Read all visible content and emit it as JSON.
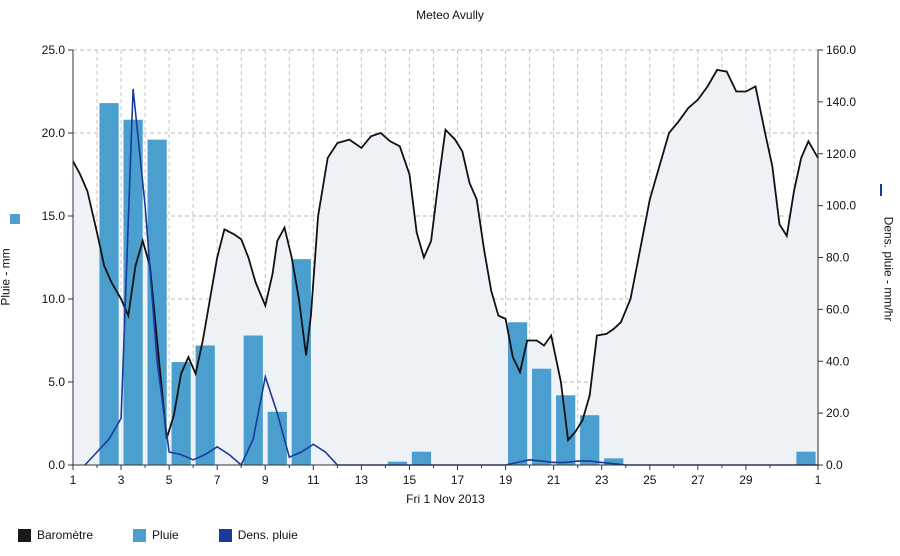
{
  "chart_data": {
    "type": "bar+line",
    "title": "Meteo  Avully",
    "xlabel": "Fri 1 Nov 2013",
    "ylabel_left": "Pluie - mm",
    "ylabel_right": "Dens. pluie - mm/hr",
    "ylim_left": [
      0,
      25
    ],
    "ylim_right": [
      0,
      160
    ],
    "grid": true,
    "x_range": [
      1,
      32
    ],
    "x_tick_labels": [
      "1",
      "3",
      "5",
      "7",
      "9",
      "11",
      "13",
      "15",
      "17",
      "19",
      "21",
      "23",
      "25",
      "27",
      "29",
      "1"
    ],
    "left_tick_labels": [
      "0.0",
      "5.0",
      "10.0",
      "15.0",
      "20.0",
      "25.0"
    ],
    "right_tick_labels": [
      "0.0",
      "20.0",
      "40.0",
      "60.0",
      "80.0",
      "100.0",
      "120.0",
      "140.0",
      "160.0"
    ],
    "legend": {
      "placement": "bottom-left",
      "entries": [
        "Baromètre",
        "Pluie",
        "Dens. pluie"
      ]
    },
    "series": [
      {
        "name": "Pluie",
        "kind": "bar",
        "axis": "left",
        "color": "#4a9fcf",
        "points": [
          {
            "x": 2.5,
            "y": 21.8
          },
          {
            "x": 3.5,
            "y": 20.8
          },
          {
            "x": 4.5,
            "y": 19.6
          },
          {
            "x": 5.5,
            "y": 6.2
          },
          {
            "x": 6.5,
            "y": 7.2
          },
          {
            "x": 8.5,
            "y": 7.8
          },
          {
            "x": 9.5,
            "y": 3.2
          },
          {
            "x": 10.5,
            "y": 12.4
          },
          {
            "x": 14.5,
            "y": 0.2
          },
          {
            "x": 15.5,
            "y": 0.8
          },
          {
            "x": 19.5,
            "y": 8.6
          },
          {
            "x": 20.5,
            "y": 5.8
          },
          {
            "x": 21.5,
            "y": 4.2
          },
          {
            "x": 22.5,
            "y": 3.0
          },
          {
            "x": 23.5,
            "y": 0.4
          },
          {
            "x": 31.5,
            "y": 0.8
          }
        ]
      },
      {
        "name": "Dens. pluie",
        "kind": "line",
        "axis": "right",
        "color": "#1a3a9a",
        "points": [
          [
            1.5,
            0
          ],
          [
            2,
            5
          ],
          [
            2.5,
            10
          ],
          [
            3,
            18
          ],
          [
            3.5,
            145
          ],
          [
            4,
            100
          ],
          [
            4.5,
            40
          ],
          [
            5,
            5
          ],
          [
            5.5,
            4
          ],
          [
            6,
            2
          ],
          [
            6.5,
            4
          ],
          [
            7,
            7
          ],
          [
            7.5,
            4
          ],
          [
            8,
            0
          ],
          [
            8.5,
            10
          ],
          [
            9,
            34
          ],
          [
            9.5,
            20
          ],
          [
            10,
            3
          ],
          [
            10.5,
            5
          ],
          [
            11,
            8
          ],
          [
            11.5,
            5
          ],
          [
            12,
            0
          ],
          [
            19,
            0
          ],
          [
            19.5,
            1
          ],
          [
            20,
            2
          ],
          [
            20.5,
            1.5
          ],
          [
            21,
            1
          ],
          [
            21.5,
            1
          ],
          [
            22,
            1.5
          ],
          [
            22.5,
            1.5
          ],
          [
            23,
            1
          ],
          [
            23.5,
            0.5
          ],
          [
            24,
            0
          ],
          [
            32,
            0
          ]
        ]
      },
      {
        "name": "Baromètre",
        "kind": "area-line",
        "axis": "left",
        "color": "#111111",
        "points": [
          [
            1,
            18.3
          ],
          [
            1.3,
            17.5
          ],
          [
            1.6,
            16.5
          ],
          [
            2,
            14
          ],
          [
            2.3,
            12
          ],
          [
            2.6,
            11
          ],
          [
            3,
            10
          ],
          [
            3.3,
            9
          ],
          [
            3.6,
            12
          ],
          [
            3.9,
            13.5
          ],
          [
            4.2,
            12
          ],
          [
            4.6,
            6
          ],
          [
            4.9,
            1.6
          ],
          [
            5.2,
            3
          ],
          [
            5.5,
            5.5
          ],
          [
            5.8,
            6.5
          ],
          [
            6.1,
            5.5
          ],
          [
            6.4,
            7.5
          ],
          [
            6.7,
            10
          ],
          [
            7,
            12.5
          ],
          [
            7.3,
            14.2
          ],
          [
            7.7,
            13.9
          ],
          [
            8,
            13.6
          ],
          [
            8.3,
            12.5
          ],
          [
            8.6,
            11
          ],
          [
            9,
            9.6
          ],
          [
            9.3,
            11.5
          ],
          [
            9.5,
            13.5
          ],
          [
            9.8,
            14.3
          ],
          [
            10.1,
            12.5
          ],
          [
            10.4,
            10
          ],
          [
            10.7,
            6.6
          ],
          [
            10.9,
            9
          ],
          [
            11.2,
            15
          ],
          [
            11.6,
            18.5
          ],
          [
            12,
            19.4
          ],
          [
            12.5,
            19.6
          ],
          [
            13,
            19.1
          ],
          [
            13.4,
            19.8
          ],
          [
            13.8,
            20
          ],
          [
            14.2,
            19.5
          ],
          [
            14.6,
            19.2
          ],
          [
            15,
            17.5
          ],
          [
            15.3,
            14
          ],
          [
            15.6,
            12.5
          ],
          [
            15.9,
            13.5
          ],
          [
            16.2,
            17
          ],
          [
            16.5,
            20.2
          ],
          [
            16.9,
            19.6
          ],
          [
            17.2,
            18.9
          ],
          [
            17.5,
            17
          ],
          [
            17.8,
            16
          ],
          [
            18.1,
            13
          ],
          [
            18.4,
            10.5
          ],
          [
            18.7,
            9
          ],
          [
            19,
            8.8
          ],
          [
            19.3,
            6.5
          ],
          [
            19.6,
            5.6
          ],
          [
            19.9,
            7.5
          ],
          [
            20.3,
            7.5
          ],
          [
            20.6,
            7.2
          ],
          [
            20.9,
            7.8
          ],
          [
            21.3,
            5
          ],
          [
            21.6,
            1.5
          ],
          [
            21.9,
            2
          ],
          [
            22.2,
            2.7
          ],
          [
            22.5,
            4.2
          ],
          [
            22.8,
            7.8
          ],
          [
            23.2,
            7.9
          ],
          [
            23.5,
            8.2
          ],
          [
            23.8,
            8.6
          ],
          [
            24.2,
            10
          ],
          [
            24.6,
            13
          ],
          [
            25,
            16
          ],
          [
            25.4,
            18
          ],
          [
            25.8,
            20
          ],
          [
            26.2,
            20.7
          ],
          [
            26.6,
            21.5
          ],
          [
            27,
            22
          ],
          [
            27.4,
            22.8
          ],
          [
            27.8,
            23.8
          ],
          [
            28.2,
            23.7
          ],
          [
            28.6,
            22.5
          ],
          [
            29,
            22.5
          ],
          [
            29.4,
            22.8
          ],
          [
            29.8,
            20
          ],
          [
            30.1,
            18
          ],
          [
            30.4,
            14.5
          ],
          [
            30.7,
            13.8
          ],
          [
            31,
            16.5
          ],
          [
            31.3,
            18.5
          ],
          [
            31.6,
            19.5
          ],
          [
            32,
            18.5
          ]
        ]
      }
    ]
  },
  "legend_colors": {
    "barometre": "#1a1a1a",
    "pluie": "#4a9fcf",
    "dens": "#1a3a9a"
  }
}
